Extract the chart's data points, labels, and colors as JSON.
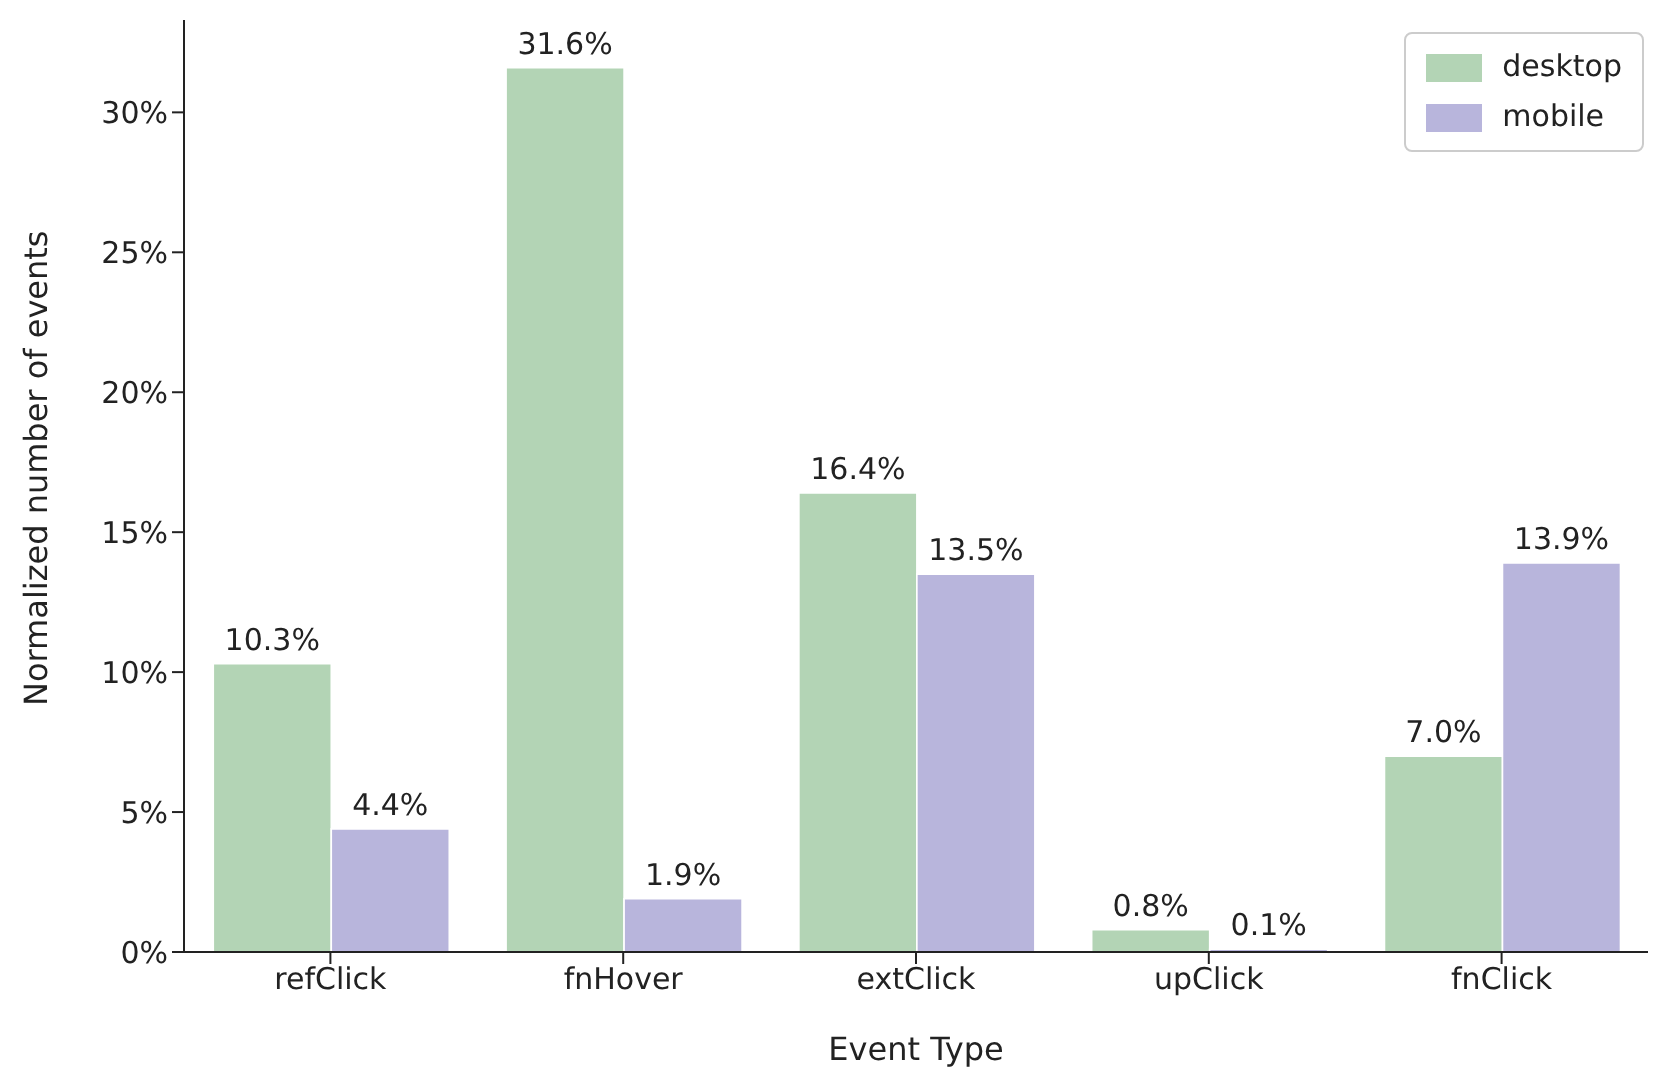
{
  "chart_data": {
    "type": "bar",
    "xlabel": "Event Type",
    "ylabel": "Normalized number of events",
    "categories": [
      "refClick",
      "fnHover",
      "extClick",
      "upClick",
      "fnClick"
    ],
    "series": [
      {
        "name": "desktop",
        "color": "#b3d4b5",
        "values": [
          10.3,
          31.6,
          16.4,
          0.8,
          7.0
        ],
        "value_labels": [
          "10.3%",
          "31.6%",
          "16.4%",
          "0.8%",
          "7.0%"
        ]
      },
      {
        "name": "mobile",
        "color": "#b8b5dc",
        "values": [
          4.4,
          1.9,
          13.5,
          0.1,
          13.9
        ],
        "value_labels": [
          "4.4%",
          "1.9%",
          "13.5%",
          "0.1%",
          "13.9%"
        ]
      }
    ],
    "ylim": [
      0,
      33.3
    ],
    "yticks": [
      {
        "value": 0,
        "label": "0%"
      },
      {
        "value": 5,
        "label": "5%"
      },
      {
        "value": 10,
        "label": "10%"
      },
      {
        "value": 15,
        "label": "15%"
      },
      {
        "value": 20,
        "label": "20%"
      },
      {
        "value": 25,
        "label": "25%"
      },
      {
        "value": 30,
        "label": "30%"
      }
    ],
    "grid": false,
    "legend": "top right"
  }
}
